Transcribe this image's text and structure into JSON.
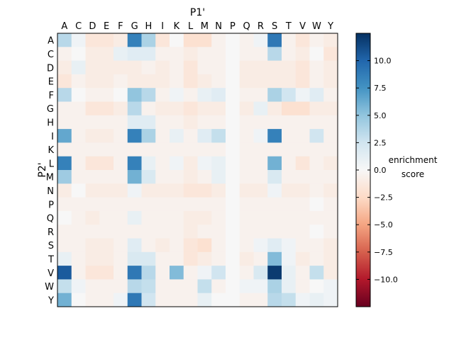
{
  "chart_data": {
    "type": "heatmap",
    "xlabel": "P1'",
    "ylabel": "P2'",
    "x_categories": [
      "A",
      "C",
      "D",
      "E",
      "F",
      "G",
      "H",
      "I",
      "K",
      "L",
      "M",
      "N",
      "P",
      "Q",
      "R",
      "S",
      "T",
      "V",
      "W",
      "Y"
    ],
    "y_categories": [
      "A",
      "C",
      "D",
      "E",
      "F",
      "G",
      "H",
      "I",
      "K",
      "L",
      "M",
      "N",
      "P",
      "Q",
      "R",
      "S",
      "T",
      "V",
      "W",
      "Y"
    ],
    "colorbar": {
      "label_lines": [
        "enrichment",
        "score"
      ],
      "range": [
        -12.5,
        12.5
      ],
      "ticks": [
        "10.0",
        "7.5",
        "5.0",
        "2.5",
        "0.0",
        "−2.5",
        "−5.0",
        "−7.5",
        "−10.0"
      ],
      "tick_values": [
        10,
        7.5,
        5,
        2.5,
        0,
        -2.5,
        -5,
        -7.5,
        -10
      ],
      "colormap": "RdBu"
    },
    "values": [
      [
        3.5,
        0.5,
        -1.5,
        -1.5,
        -1.0,
        8.5,
        4.0,
        -1.5,
        0.0,
        -2.0,
        -2.0,
        -0.5,
        0.0,
        -0.5,
        0.5,
        9.0,
        -0.5,
        -1.5,
        -0.5,
        -1.0
      ],
      [
        -0.5,
        0.0,
        -1.0,
        -1.0,
        1.0,
        1.5,
        1.5,
        -0.5,
        -0.5,
        -1.0,
        -0.5,
        -0.5,
        0.0,
        -0.5,
        -0.5,
        3.5,
        -0.5,
        -1.0,
        0.0,
        -1.5
      ],
      [
        -1.0,
        1.0,
        -1.0,
        -1.0,
        -1.0,
        -1.0,
        -0.5,
        -1.0,
        -0.5,
        -1.5,
        -0.5,
        -0.5,
        0.0,
        -1.0,
        -1.0,
        -1.0,
        -1.0,
        -1.5,
        -0.5,
        -1.0
      ],
      [
        -1.5,
        -0.5,
        -1.0,
        -1.0,
        -0.5,
        -1.0,
        -1.0,
        -1.0,
        -0.5,
        -1.5,
        -1.0,
        -0.5,
        0.0,
        -1.0,
        -1.0,
        -1.0,
        -1.0,
        -1.5,
        -0.5,
        -1.0
      ],
      [
        3.5,
        0.0,
        -0.5,
        -0.5,
        0.0,
        5.0,
        3.5,
        -0.5,
        0.5,
        -0.5,
        1.0,
        1.5,
        0.0,
        -0.5,
        -0.5,
        4.0,
        2.5,
        0.5,
        1.5,
        -0.5
      ],
      [
        -0.5,
        -0.5,
        -1.5,
        -1.5,
        -1.0,
        3.5,
        -0.5,
        -1.0,
        -1.0,
        -1.5,
        -1.0,
        -1.0,
        0.0,
        -1.0,
        1.0,
        -1.0,
        -2.0,
        -2.0,
        -1.0,
        -1.0
      ],
      [
        -0.5,
        -0.5,
        -0.5,
        -0.5,
        -0.5,
        1.5,
        1.5,
        -0.5,
        -0.5,
        -1.0,
        -0.5,
        -0.5,
        0.0,
        -0.5,
        -0.5,
        -0.5,
        -0.5,
        -0.5,
        -0.5,
        -0.5
      ],
      [
        6.5,
        -0.5,
        -1.0,
        -1.0,
        -0.5,
        8.5,
        4.0,
        -0.5,
        1.0,
        -0.5,
        1.5,
        3.0,
        0.0,
        -0.5,
        0.5,
        8.5,
        -0.5,
        -0.5,
        2.5,
        -0.5
      ],
      [
        -0.5,
        -0.5,
        -0.5,
        -0.5,
        -0.5,
        -0.5,
        -0.5,
        -0.5,
        -0.5,
        -0.5,
        -0.5,
        -0.5,
        0.0,
        -0.5,
        -0.5,
        -0.5,
        -0.5,
        -0.5,
        -0.5,
        -0.5
      ],
      [
        8.5,
        -0.5,
        -1.5,
        -1.5,
        -0.5,
        8.5,
        1.0,
        -0.5,
        0.5,
        -1.0,
        0.5,
        1.0,
        0.0,
        -0.5,
        -0.5,
        6.0,
        -0.5,
        -1.5,
        -0.5,
        -1.0
      ],
      [
        4.5,
        -0.5,
        -0.5,
        -0.5,
        -0.5,
        6.0,
        2.0,
        -0.5,
        -0.5,
        -1.0,
        -0.5,
        1.0,
        0.0,
        -0.5,
        -0.5,
        2.0,
        -0.5,
        -0.5,
        -0.5,
        -0.5
      ],
      [
        -1.0,
        0.0,
        -1.0,
        -1.0,
        -1.0,
        0.5,
        -1.0,
        -1.0,
        -1.0,
        -1.5,
        -1.5,
        -1.0,
        0.0,
        -1.0,
        -1.0,
        0.5,
        -1.0,
        -1.0,
        -0.5,
        -1.0
      ],
      [
        -0.5,
        -0.5,
        -0.5,
        -0.5,
        -0.5,
        -0.5,
        -0.5,
        -0.5,
        -0.5,
        -0.5,
        -0.5,
        -0.5,
        0.0,
        -0.5,
        -0.5,
        -0.5,
        -0.5,
        -0.5,
        0.0,
        -0.5
      ],
      [
        0.0,
        -0.5,
        -1.0,
        -0.5,
        -0.5,
        1.0,
        -0.5,
        -0.5,
        -0.5,
        -1.0,
        -1.0,
        -0.5,
        0.0,
        -0.5,
        -0.5,
        -0.5,
        -0.5,
        -0.5,
        -0.5,
        -0.5
      ],
      [
        -0.5,
        -0.5,
        -0.5,
        -0.5,
        -0.5,
        -0.5,
        -0.5,
        -0.5,
        -0.5,
        -1.0,
        -0.5,
        -0.5,
        0.0,
        -0.5,
        -0.5,
        -0.5,
        -0.5,
        -0.5,
        0.0,
        -0.5
      ],
      [
        -0.5,
        -0.5,
        -1.0,
        -1.0,
        -0.5,
        1.5,
        -0.5,
        -1.0,
        -0.5,
        -1.5,
        -2.0,
        -0.5,
        0.0,
        -0.5,
        0.5,
        1.5,
        0.5,
        -0.5,
        -0.5,
        -1.0
      ],
      [
        1.0,
        -0.5,
        -1.0,
        -1.0,
        -0.5,
        2.0,
        2.0,
        -0.5,
        -0.5,
        -1.5,
        -1.0,
        -0.5,
        0.0,
        -1.0,
        -0.5,
        5.5,
        0.5,
        -1.0,
        -0.5,
        -1.0
      ],
      [
        10.5,
        -0.5,
        -1.5,
        -1.5,
        -0.5,
        9.0,
        3.5,
        -0.5,
        5.5,
        -0.5,
        0.5,
        2.5,
        0.0,
        -0.5,
        2.0,
        12.0,
        1.0,
        -0.5,
        3.0,
        -1.0
      ],
      [
        3.0,
        0.5,
        -0.5,
        -0.5,
        -0.5,
        3.5,
        3.0,
        -0.5,
        -0.5,
        -0.5,
        3.0,
        -0.5,
        0.0,
        0.5,
        0.5,
        4.0,
        1.0,
        -0.5,
        0.0,
        0.5
      ],
      [
        6.0,
        0.0,
        -0.5,
        -0.5,
        0.5,
        9.0,
        2.5,
        -0.5,
        -0.5,
        -0.5,
        1.0,
        0.0,
        0.0,
        -0.5,
        -0.5,
        3.5,
        3.0,
        0.5,
        1.0,
        0.5
      ]
    ]
  }
}
